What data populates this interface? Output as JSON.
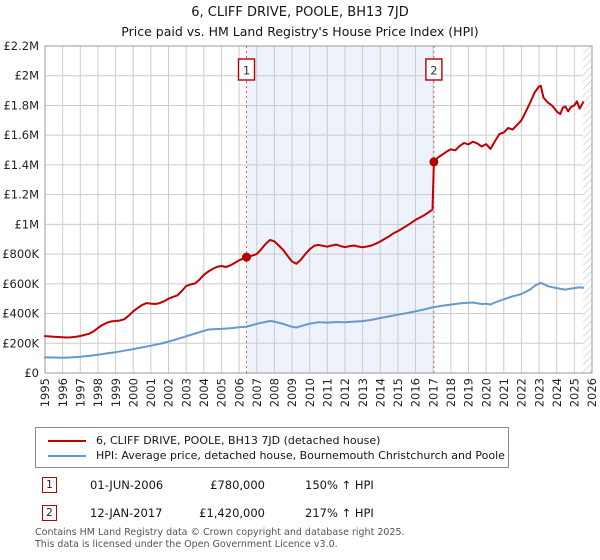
{
  "title": "6, CLIFF DRIVE, POOLE, BH13 7JD",
  "subtitle": "Price paid vs. HM Land Registry's House Price Index (HPI)",
  "chart_data": {
    "type": "line",
    "xlim": [
      1995,
      2026
    ],
    "ylim": [
      0,
      2200000
    ],
    "grid": true,
    "x_ticks": [
      "1995",
      "1996",
      "1997",
      "1998",
      "1999",
      "2000",
      "2001",
      "2002",
      "2003",
      "2004",
      "2005",
      "2006",
      "2007",
      "2008",
      "2009",
      "2010",
      "2011",
      "2012",
      "2013",
      "2014",
      "2015",
      "2016",
      "2017",
      "2018",
      "2019",
      "2020",
      "2021",
      "2022",
      "2023",
      "2024",
      "2025",
      "2026"
    ],
    "y_ticks": [
      {
        "label": "£0",
        "value": 0
      },
      {
        "label": "£200K",
        "value": 200000
      },
      {
        "label": "£400K",
        "value": 400000
      },
      {
        "label": "£600K",
        "value": 600000
      },
      {
        "label": "£800K",
        "value": 800000
      },
      {
        "label": "£1M",
        "value": 1000000
      },
      {
        "label": "£1.2M",
        "value": 1200000
      },
      {
        "label": "£1.4M",
        "value": 1400000
      },
      {
        "label": "£1.6M",
        "value": 1600000
      },
      {
        "label": "£1.8M",
        "value": 1800000
      },
      {
        "label": "£2M",
        "value": 2000000
      },
      {
        "label": "£2.2M",
        "value": 2200000
      }
    ],
    "shaded_span": {
      "from": 2006.42,
      "to": 2017.04,
      "color": "#eef2fb"
    },
    "future_hatch_from": 2025.5,
    "grid_color": "#cccccc",
    "border_color": "#999999",
    "dashed_line_color": "#e06060",
    "markers": [
      {
        "label": "1",
        "year": 2006.42,
        "value": 780000
      },
      {
        "label": "2",
        "year": 2017.04,
        "value": 1420000
      }
    ],
    "series": [
      {
        "name": "6, CLIFF DRIVE, POOLE, BH13 7JD (detached house)",
        "color": "#c00000",
        "points": [
          [
            1995.0,
            248000
          ],
          [
            1995.25,
            246000
          ],
          [
            1995.5,
            244000
          ],
          [
            1995.75,
            242000
          ],
          [
            1996.0,
            240000
          ],
          [
            1996.25,
            239000
          ],
          [
            1996.5,
            241000
          ],
          [
            1996.75,
            244000
          ],
          [
            1997.0,
            249000
          ],
          [
            1997.25,
            256000
          ],
          [
            1997.5,
            264000
          ],
          [
            1997.75,
            280000
          ],
          [
            1998.0,
            303000
          ],
          [
            1998.25,
            323000
          ],
          [
            1998.5,
            338000
          ],
          [
            1998.75,
            347000
          ],
          [
            1999.0,
            350000
          ],
          [
            1999.25,
            353000
          ],
          [
            1999.5,
            362000
          ],
          [
            1999.75,
            386000
          ],
          [
            2000.0,
            415000
          ],
          [
            2000.25,
            437000
          ],
          [
            2000.5,
            457000
          ],
          [
            2000.75,
            470000
          ],
          [
            2001.0,
            467000
          ],
          [
            2001.25,
            464000
          ],
          [
            2001.5,
            470000
          ],
          [
            2001.75,
            483000
          ],
          [
            2002.0,
            500000
          ],
          [
            2002.25,
            512000
          ],
          [
            2002.5,
            522000
          ],
          [
            2002.75,
            552000
          ],
          [
            2003.0,
            585000
          ],
          [
            2003.25,
            596000
          ],
          [
            2003.5,
            602000
          ],
          [
            2003.75,
            628000
          ],
          [
            2004.0,
            660000
          ],
          [
            2004.25,
            682000
          ],
          [
            2004.5,
            700000
          ],
          [
            2004.75,
            714000
          ],
          [
            2005.0,
            720000
          ],
          [
            2005.25,
            713000
          ],
          [
            2005.5,
            724000
          ],
          [
            2005.75,
            740000
          ],
          [
            2006.0,
            758000
          ],
          [
            2006.25,
            772000
          ],
          [
            2006.42,
            780000
          ],
          [
            2006.58,
            784000
          ],
          [
            2006.75,
            790000
          ],
          [
            2007.0,
            800000
          ],
          [
            2007.25,
            832000
          ],
          [
            2007.5,
            868000
          ],
          [
            2007.75,
            895000
          ],
          [
            2008.0,
            886000
          ],
          [
            2008.25,
            858000
          ],
          [
            2008.5,
            828000
          ],
          [
            2008.75,
            788000
          ],
          [
            2009.0,
            750000
          ],
          [
            2009.25,
            735000
          ],
          [
            2009.5,
            762000
          ],
          [
            2009.75,
            800000
          ],
          [
            2010.0,
            832000
          ],
          [
            2010.25,
            855000
          ],
          [
            2010.5,
            862000
          ],
          [
            2010.75,
            856000
          ],
          [
            2011.0,
            850000
          ],
          [
            2011.25,
            858000
          ],
          [
            2011.5,
            864000
          ],
          [
            2011.75,
            854000
          ],
          [
            2012.0,
            847000
          ],
          [
            2012.25,
            853000
          ],
          [
            2012.5,
            858000
          ],
          [
            2012.75,
            851000
          ],
          [
            2013.0,
            846000
          ],
          [
            2013.25,
            851000
          ],
          [
            2013.5,
            858000
          ],
          [
            2013.75,
            870000
          ],
          [
            2014.0,
            885000
          ],
          [
            2014.25,
            902000
          ],
          [
            2014.5,
            920000
          ],
          [
            2014.75,
            940000
          ],
          [
            2015.0,
            955000
          ],
          [
            2015.25,
            972000
          ],
          [
            2015.5,
            990000
          ],
          [
            2015.75,
            1010000
          ],
          [
            2016.0,
            1030000
          ],
          [
            2016.25,
            1046000
          ],
          [
            2016.5,
            1062000
          ],
          [
            2016.75,
            1082000
          ],
          [
            2016.96,
            1100000
          ],
          [
            2017.04,
            1420000
          ],
          [
            2017.25,
            1448000
          ],
          [
            2017.5,
            1468000
          ],
          [
            2017.75,
            1488000
          ],
          [
            2018.0,
            1505000
          ],
          [
            2018.25,
            1498000
          ],
          [
            2018.5,
            1528000
          ],
          [
            2018.75,
            1548000
          ],
          [
            2019.0,
            1538000
          ],
          [
            2019.25,
            1556000
          ],
          [
            2019.5,
            1545000
          ],
          [
            2019.75,
            1524000
          ],
          [
            2020.0,
            1540000
          ],
          [
            2020.25,
            1508000
          ],
          [
            2020.5,
            1560000
          ],
          [
            2020.75,
            1608000
          ],
          [
            2021.0,
            1618000
          ],
          [
            2021.25,
            1648000
          ],
          [
            2021.5,
            1638000
          ],
          [
            2021.75,
            1668000
          ],
          [
            2022.0,
            1700000
          ],
          [
            2022.25,
            1758000
          ],
          [
            2022.5,
            1820000
          ],
          [
            2022.75,
            1888000
          ],
          [
            2023.0,
            1928000
          ],
          [
            2023.1,
            1932000
          ],
          [
            2023.25,
            1852000
          ],
          [
            2023.5,
            1820000
          ],
          [
            2023.75,
            1798000
          ],
          [
            2024.0,
            1760000
          ],
          [
            2024.2,
            1742000
          ],
          [
            2024.35,
            1786000
          ],
          [
            2024.5,
            1792000
          ],
          [
            2024.65,
            1760000
          ],
          [
            2024.8,
            1788000
          ],
          [
            2025.0,
            1802000
          ],
          [
            2025.15,
            1828000
          ],
          [
            2025.3,
            1778000
          ],
          [
            2025.5,
            1822000
          ]
        ]
      },
      {
        "name": "HPI: Average price, detached house, Bournemouth Christchurch and Poole",
        "color": "#6699cc",
        "points": [
          [
            1995.0,
            105000
          ],
          [
            1995.5,
            104000
          ],
          [
            1996.0,
            103000
          ],
          [
            1996.5,
            105000
          ],
          [
            1997.0,
            109000
          ],
          [
            1997.5,
            115000
          ],
          [
            1998.0,
            123000
          ],
          [
            1998.5,
            132000
          ],
          [
            1999.0,
            140000
          ],
          [
            1999.5,
            150000
          ],
          [
            2000.0,
            161000
          ],
          [
            2000.5,
            172000
          ],
          [
            2001.0,
            184000
          ],
          [
            2001.5,
            196000
          ],
          [
            2002.0,
            211000
          ],
          [
            2002.5,
            228000
          ],
          [
            2003.0,
            247000
          ],
          [
            2003.5,
            266000
          ],
          [
            2004.0,
            283000
          ],
          [
            2004.25,
            292000
          ],
          [
            2004.5,
            295000
          ],
          [
            2005.0,
            297000
          ],
          [
            2005.5,
            301000
          ],
          [
            2006.0,
            308000
          ],
          [
            2006.42,
            312000
          ],
          [
            2006.75,
            322000
          ],
          [
            2007.0,
            330000
          ],
          [
            2007.5,
            344000
          ],
          [
            2007.75,
            350000
          ],
          [
            2008.0,
            346000
          ],
          [
            2008.5,
            330000
          ],
          [
            2009.0,
            311000
          ],
          [
            2009.25,
            306000
          ],
          [
            2009.5,
            315000
          ],
          [
            2009.75,
            324000
          ],
          [
            2010.0,
            332000
          ],
          [
            2010.5,
            342000
          ],
          [
            2011.0,
            339000
          ],
          [
            2011.5,
            343000
          ],
          [
            2012.0,
            341000
          ],
          [
            2012.5,
            346000
          ],
          [
            2013.0,
            349000
          ],
          [
            2013.5,
            357000
          ],
          [
            2014.0,
            370000
          ],
          [
            2014.5,
            381000
          ],
          [
            2015.0,
            392000
          ],
          [
            2015.5,
            403000
          ],
          [
            2016.0,
            415000
          ],
          [
            2016.5,
            428000
          ],
          [
            2017.0,
            443000
          ],
          [
            2017.5,
            452000
          ],
          [
            2018.0,
            460000
          ],
          [
            2018.5,
            468000
          ],
          [
            2019.0,
            472000
          ],
          [
            2019.25,
            474000
          ],
          [
            2019.5,
            469000
          ],
          [
            2019.75,
            464000
          ],
          [
            2020.0,
            466000
          ],
          [
            2020.25,
            461000
          ],
          [
            2020.5,
            474000
          ],
          [
            2020.75,
            486000
          ],
          [
            2021.0,
            496000
          ],
          [
            2021.25,
            506000
          ],
          [
            2021.5,
            516000
          ],
          [
            2021.75,
            523000
          ],
          [
            2022.0,
            532000
          ],
          [
            2022.25,
            546000
          ],
          [
            2022.5,
            562000
          ],
          [
            2022.75,
            586000
          ],
          [
            2023.0,
            602000
          ],
          [
            2023.1,
            606000
          ],
          [
            2023.3,
            596000
          ],
          [
            2023.5,
            584000
          ],
          [
            2023.75,
            577000
          ],
          [
            2024.0,
            571000
          ],
          [
            2024.25,
            565000
          ],
          [
            2024.5,
            561000
          ],
          [
            2024.75,
            567000
          ],
          [
            2025.0,
            571000
          ],
          [
            2025.25,
            576000
          ],
          [
            2025.5,
            573000
          ]
        ]
      }
    ]
  },
  "legend": {
    "items": [
      "6, CLIFF DRIVE, POOLE, BH13 7JD (detached house)",
      "HPI: Average price, detached house, Bournemouth Christchurch and Poole"
    ]
  },
  "annotations": [
    {
      "num": "1",
      "date": "01-JUN-2006",
      "price": "£780,000",
      "hpi": "150% ↑ HPI"
    },
    {
      "num": "2",
      "date": "12-JAN-2017",
      "price": "£1,420,000",
      "hpi": "217% ↑ HPI"
    }
  ],
  "footer": {
    "line1": "Contains HM Land Registry data © Crown copyright and database right 2025.",
    "line2": "This data is licensed under the Open Government Licence v3.0."
  }
}
